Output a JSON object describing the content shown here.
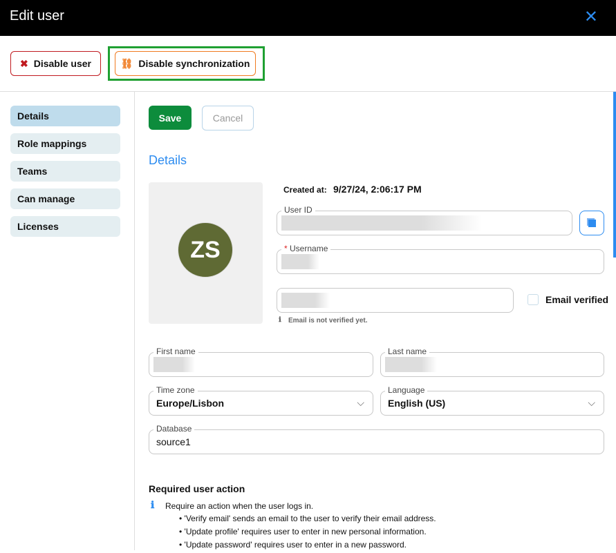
{
  "header": {
    "title": "Edit user",
    "close_icon": "close-icon"
  },
  "toolbar": {
    "disable_user": "Disable user",
    "disable_sync": "Disable synchronization"
  },
  "sidebar": {
    "items": [
      {
        "label": "Details"
      },
      {
        "label": "Role mappings"
      },
      {
        "label": "Teams"
      },
      {
        "label": "Can manage"
      },
      {
        "label": "Licenses"
      }
    ]
  },
  "actions": {
    "save": "Save",
    "cancel": "Cancel"
  },
  "details": {
    "title": "Details",
    "initials": "ZS",
    "created_label": "Created at:",
    "created_value": "9/27/24, 2:06:17 PM",
    "user_id_label": "User ID",
    "username_label": "Username",
    "required_mark": "*",
    "email_verified": "Email verified",
    "email_hint": "Email is not verified yet.",
    "first_name_label": "First name",
    "last_name_label": "Last name",
    "timezone_label": "Time zone",
    "timezone_value": "Europe/Lisbon",
    "language_label": "Language",
    "language_value": "English (US)",
    "database_label": "Database",
    "database_value": "source1"
  },
  "required_action": {
    "title": "Required user action",
    "intro": "Require an action when the user logs in.",
    "bullets": [
      "'Verify email' sends an email to the user to verify their email address.",
      "'Update profile' requires user to enter in new personal information.",
      "'Update password' requires user to enter in a new password."
    ]
  },
  "colors": {
    "accent": "#2d8cf0",
    "save": "#0d8c3c",
    "avatar": "#5f6a34",
    "danger": "#c0191f",
    "warning": "#f07a1f"
  }
}
